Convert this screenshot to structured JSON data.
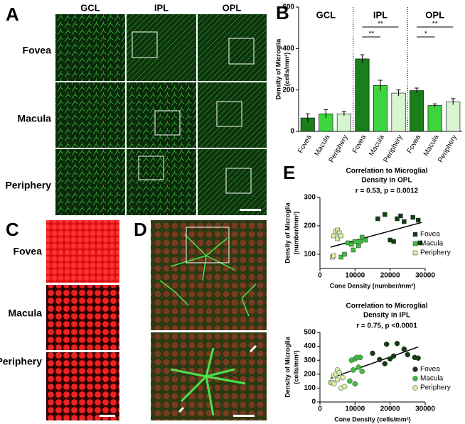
{
  "panel_labels": [
    "A",
    "B",
    "C",
    "D",
    "E"
  ],
  "panel_a": {
    "columns": [
      "GCL",
      "IPL",
      "OPL"
    ],
    "rows": [
      "Fovea",
      "Macula",
      "Periphery"
    ]
  },
  "panel_c": {
    "rows": [
      "Fovea",
      "Macula",
      "Periphery"
    ]
  },
  "chart_data": [
    {
      "type": "bar",
      "ylabel": [
        "Density of Microglia",
        "(cells/mm²)"
      ],
      "categories": [
        "GCL",
        "IPL",
        "OPL"
      ],
      "series": [
        {
          "name": "Fovea",
          "color": "#1a7f1a",
          "values": [
            65,
            350,
            197
          ],
          "errors": [
            20,
            20,
            12
          ]
        },
        {
          "name": "Macula",
          "color": "#3dd43d",
          "values": [
            85,
            222,
            125
          ],
          "errors": [
            20,
            25,
            8
          ]
        },
        {
          "name": "Periphery",
          "color": "#d6f5d0",
          "values": [
            85,
            185,
            143
          ],
          "errors": [
            10,
            15,
            15
          ]
        }
      ],
      "significance": {
        "IPL": [
          "**",
          "**"
        ],
        "OPL": [
          "*",
          "**"
        ]
      },
      "ylim": [
        0,
        600
      ],
      "yticks": [
        0,
        200,
        400,
        600
      ]
    },
    {
      "type": "scatter",
      "title": [
        "Correlation to Microglial",
        "Density in OPL"
      ],
      "stat": "r = 0.53, p = 0.0012",
      "xlabel": "Cone Density (number/mm²)",
      "ylabel": [
        "Density of Microglia",
        "(number/mm²)"
      ],
      "marker": "square",
      "series": [
        {
          "name": "Fovea",
          "color": "#123d12",
          "x": [
            16500,
            18500,
            20000,
            21000,
            22000,
            23000,
            24000,
            26500,
            28000,
            28500
          ],
          "y": [
            225,
            240,
            150,
            145,
            225,
            235,
            215,
            230,
            220,
            140
          ]
        },
        {
          "name": "Macula",
          "color": "#3dbf3d",
          "x": [
            6000,
            7000,
            8000,
            9000,
            9500,
            10000,
            11000,
            11500,
            12000,
            13000
          ],
          "y": [
            90,
            100,
            140,
            135,
            115,
            145,
            130,
            145,
            160,
            150
          ]
        },
        {
          "name": "Periphery",
          "color": "#d8f0a8",
          "x": [
            3500,
            4000,
            4000,
            4500,
            5000,
            5000,
            5500,
            6000
          ],
          "y": [
            90,
            165,
            95,
            180,
            185,
            155,
            175,
            165
          ]
        }
      ],
      "fit": {
        "x": [
          3000,
          29000
        ],
        "y": [
          125,
          212
        ]
      },
      "xlim": [
        0,
        30000
      ],
      "xticks": [
        0,
        10000,
        20000,
        30000
      ],
      "ylim": [
        50,
        300
      ],
      "yticks": [
        100,
        200,
        300
      ]
    },
    {
      "type": "scatter",
      "title": [
        "Correlation to Microglial",
        "Density in IPL"
      ],
      "stat": "r = 0.75, p <0.0001",
      "xlabel": "Cone Density (cells/mm²)",
      "ylabel": [
        "Density of Microglia",
        "(cells/mm²)"
      ],
      "marker": "circle",
      "series": [
        {
          "name": "Fovea",
          "color": "#123d12",
          "x": [
            15000,
            17000,
            18500,
            19000,
            20000,
            21000,
            22000,
            24000,
            25000,
            27000,
            28000
          ],
          "y": [
            350,
            305,
            275,
            415,
            310,
            330,
            420,
            380,
            340,
            320,
            315
          ]
        },
        {
          "name": "Macula",
          "color": "#3dbf3d",
          "x": [
            8500,
            9000,
            9500,
            10000,
            10000,
            10500,
            11000,
            11500,
            12000
          ],
          "y": [
            150,
            300,
            230,
            310,
            130,
            320,
            250,
            320,
            220
          ]
        },
        {
          "name": "Periphery",
          "color": "#d8f0a8",
          "x": [
            3000,
            3500,
            4000,
            4000,
            4500,
            5000,
            5000,
            5500,
            6000,
            6500,
            7000
          ],
          "y": [
            140,
            140,
            190,
            130,
            200,
            160,
            230,
            210,
            100,
            175,
            110
          ]
        }
      ],
      "fit": {
        "x": [
          3000,
          28000
        ],
        "y": [
          170,
          395
        ]
      },
      "xlim": [
        0,
        30000
      ],
      "xticks": [
        0,
        10000,
        20000,
        30000
      ],
      "ylim": [
        0,
        500
      ],
      "yticks": [
        0,
        100,
        200,
        300,
        400,
        500
      ]
    }
  ]
}
